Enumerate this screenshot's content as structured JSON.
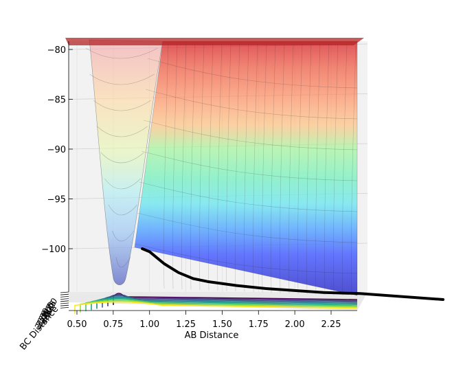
{
  "chart_data": {
    "type": "surface3d",
    "xlabel": "AB Distance",
    "ylabel": "BC Distance",
    "zlabel": "",
    "x_ticks": [
      "0.50",
      "0.75",
      "1.00",
      "1.25",
      "1.50",
      "1.75",
      "2.00",
      "2.25"
    ],
    "z_ticks": [
      "−80",
      "−85",
      "−90",
      "−95",
      "−100"
    ],
    "y_ticks": [
      "0.50",
      "0.75",
      "1.00",
      "1.25",
      "1.50",
      "1.75",
      "2.00",
      "2.25"
    ],
    "xlim": [
      0.45,
      2.45
    ],
    "zlim": [
      -104.5,
      -79.5
    ],
    "colormap_surface": "jet",
    "colormap_contour": "viridis",
    "surface_alpha": 0.5,
    "grid": true,
    "well_profile": {
      "x": [
        0.62,
        0.66,
        0.7,
        0.74,
        0.78,
        0.8,
        0.82,
        0.86,
        0.9,
        0.94,
        1.0,
        1.05
      ],
      "z": [
        -80.0,
        -88.5,
        -96.5,
        -101.5,
        -103.8,
        -104.0,
        -103.5,
        -101.5,
        -96.0,
        -89.0,
        -83.0,
        -80.0
      ]
    },
    "trajectory": {
      "x": [
        0.95,
        1.0,
        1.05,
        1.1,
        1.2,
        1.3,
        1.4,
        1.6,
        1.8,
        2.0,
        2.2,
        2.45
      ],
      "z": [
        -100.0,
        -100.3,
        -100.9,
        -101.5,
        -102.4,
        -103.0,
        -103.3,
        -103.7,
        -104.0,
        -104.2,
        -104.4,
        -104.5
      ]
    },
    "contour_levels": 8
  },
  "colors": {
    "surface_high": "#e8383b",
    "surface_orange": "#ff8c5a",
    "surface_green": "#9cf59c",
    "surface_cyan": "#6ef0dc",
    "surface_blue": "#3c6cff",
    "surface_deep": "#2020c8",
    "trajectory": "#000000",
    "pane": "#f2f2f2",
    "grid": "#cfcfcf"
  }
}
